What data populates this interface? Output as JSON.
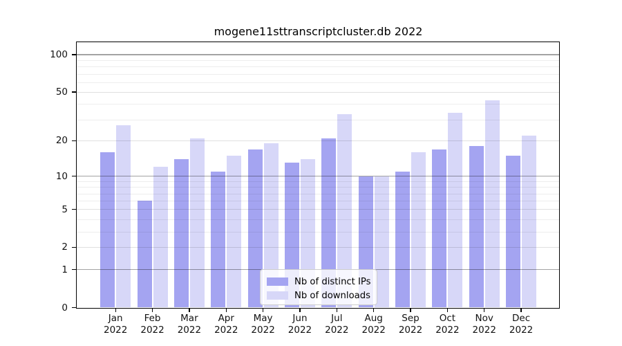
{
  "title": "mogene11sttranscriptcluster.db 2022",
  "legend": {
    "items": [
      {
        "label": "Nb of distinct IPs",
        "color": "#a4a4f1"
      },
      {
        "label": "Nb of downloads",
        "color": "#d7d7f8"
      }
    ]
  },
  "y_axis": {
    "tick_labels": [
      "100",
      "50",
      "20",
      "10",
      "5",
      "2",
      "1",
      "0"
    ]
  },
  "x_axis": {
    "tick_labels": [
      "Jan 2022",
      "Feb 2022",
      "Mar 2022",
      "Apr 2022",
      "May 2022",
      "Jun 2022",
      "Jul 2022",
      "Aug 2022",
      "Sep 2022",
      "Oct 2022",
      "Nov 2022",
      "Dec 2022"
    ]
  },
  "chart_data": {
    "type": "bar",
    "title": "mogene11sttranscriptcluster.db 2022",
    "categories": [
      "Jan 2022",
      "Feb 2022",
      "Mar 2022",
      "Apr 2022",
      "May 2022",
      "Jun 2022",
      "Jul 2022",
      "Aug 2022",
      "Sep 2022",
      "Oct 2022",
      "Nov 2022",
      "Dec 2022"
    ],
    "series": [
      {
        "name": "Nb of distinct IPs",
        "color": "#a4a4f1",
        "values": [
          16,
          6,
          14,
          11,
          17,
          13,
          21,
          10,
          11,
          17,
          18,
          15
        ]
      },
      {
        "name": "Nb of downloads",
        "color": "#d7d7f8",
        "values": [
          27,
          12,
          21,
          15,
          19,
          14,
          33,
          10,
          16,
          34,
          43,
          22
        ]
      }
    ],
    "yscale": "log1p",
    "y_major_ticks": [
      0,
      1,
      2,
      5,
      10,
      20,
      50,
      100
    ],
    "y_decade_ticks": [
      1,
      10,
      100
    ],
    "y_minor_ticks": [
      3,
      4,
      6,
      7,
      8,
      9,
      30,
      40,
      60,
      70,
      80,
      90
    ],
    "ylim": [
      0,
      125
    ],
    "grid": "on",
    "legend_position": "lower center",
    "xlabel": "",
    "ylabel": ""
  }
}
